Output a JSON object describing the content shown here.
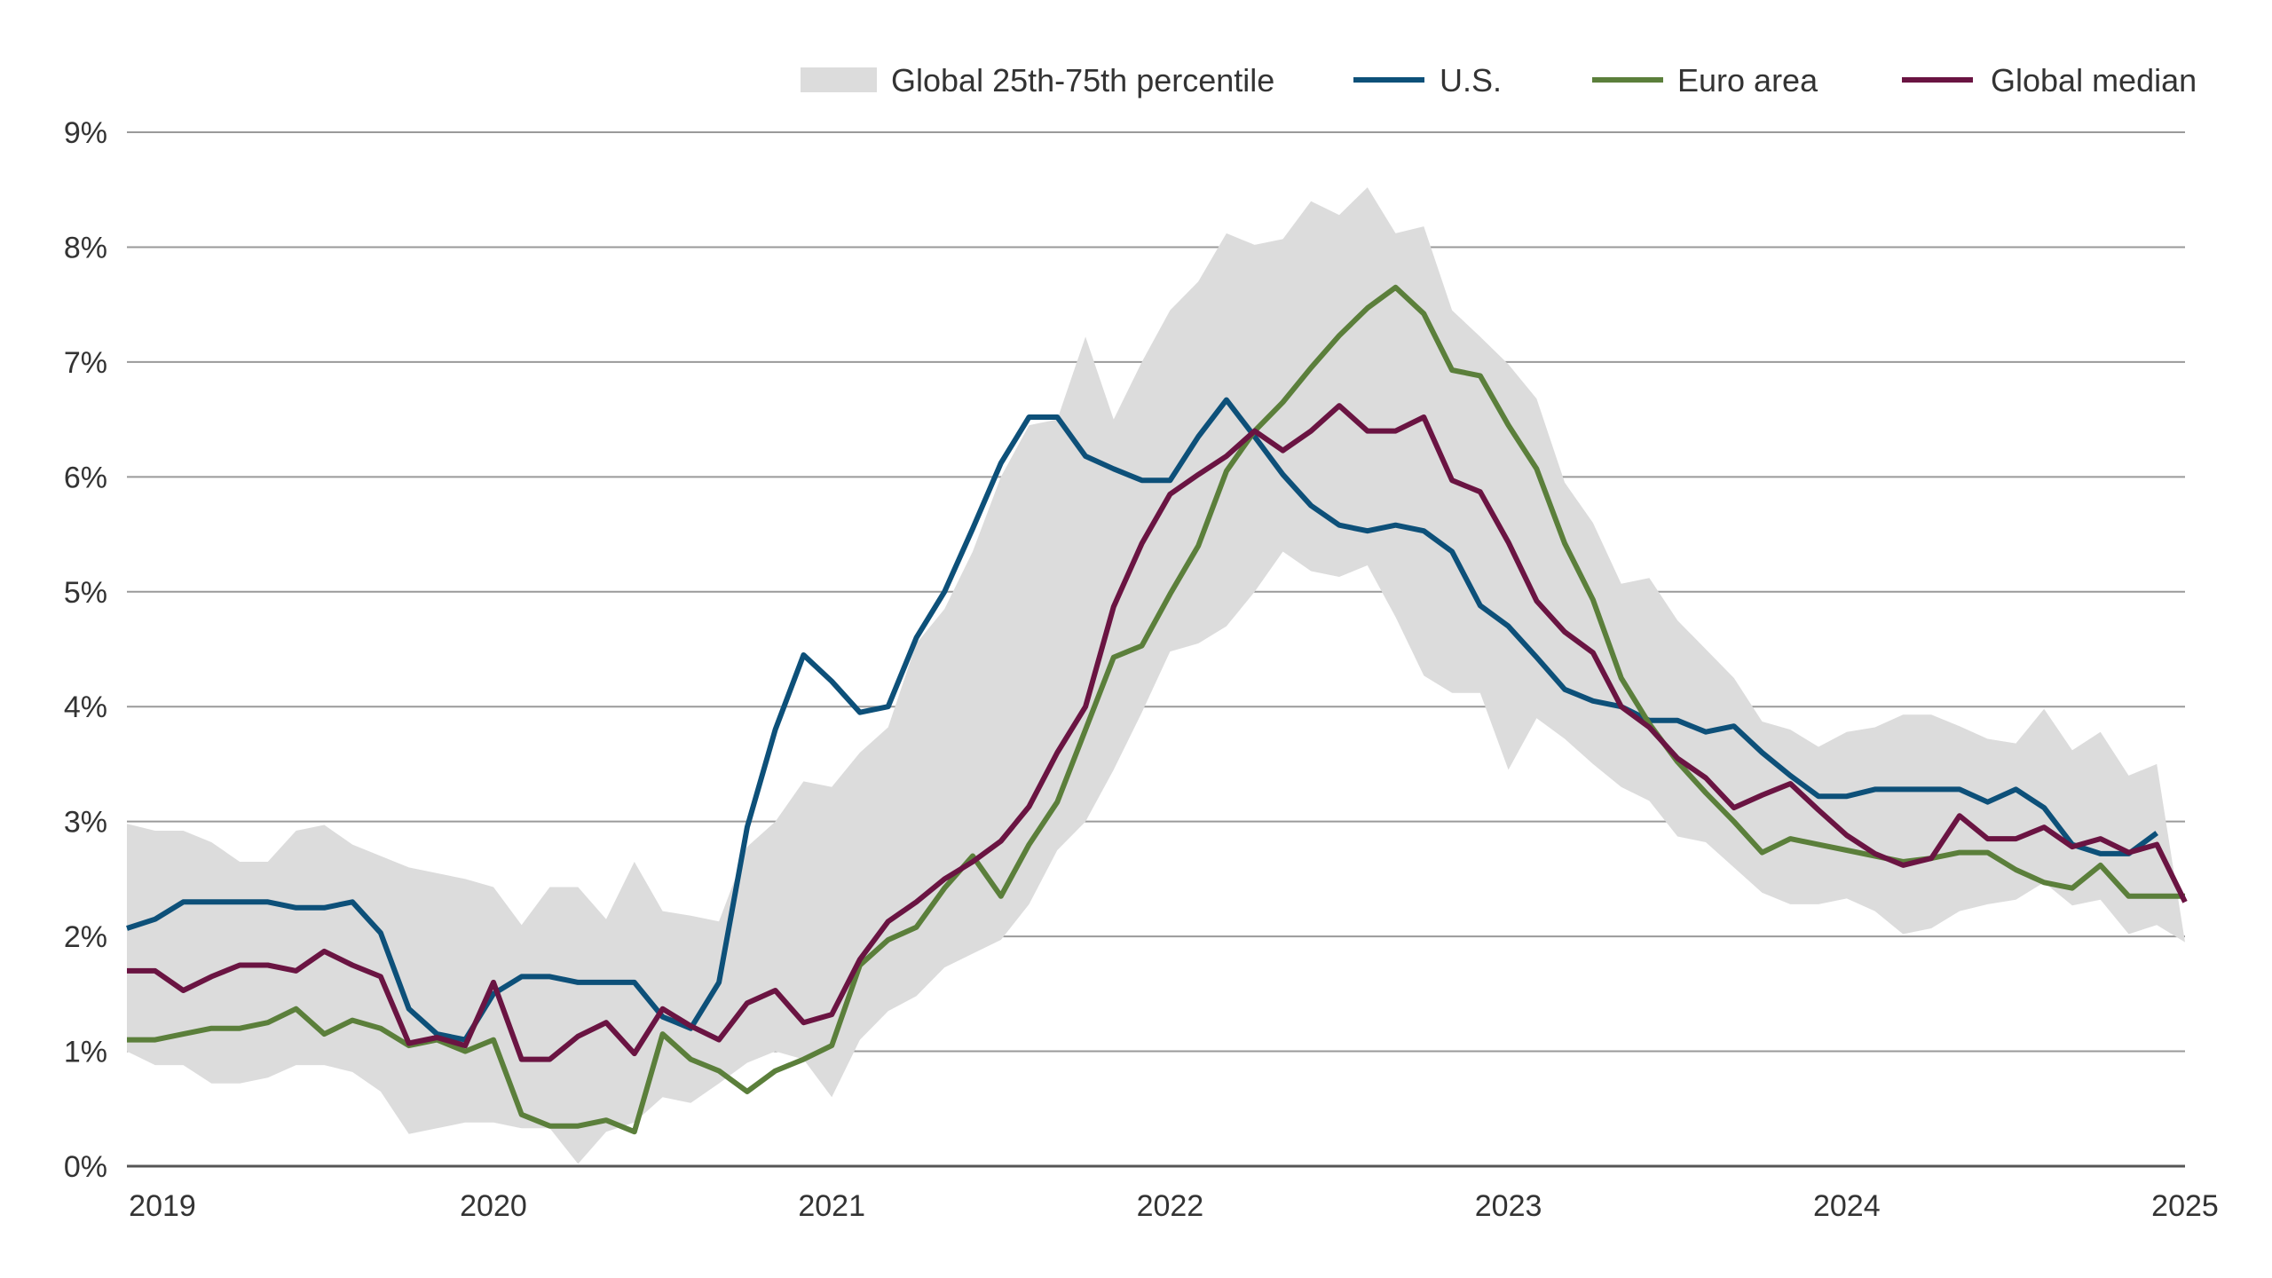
{
  "chart_data": {
    "type": "line",
    "title": "",
    "xlabel": "",
    "ylabel": "",
    "ylim": [
      0,
      9
    ],
    "y_ticks": [
      "0%",
      "1%",
      "2%",
      "3%",
      "4%",
      "5%",
      "6%",
      "7%",
      "8%",
      "9%"
    ],
    "x_ticks": [
      "2019",
      "2020",
      "2021",
      "2022",
      "2023",
      "2024",
      "2025"
    ],
    "grid": "horizontal",
    "legend_position": "top-right",
    "x": [
      "2018-12",
      "2019-01",
      "2019-02",
      "2019-03",
      "2019-04",
      "2019-05",
      "2019-06",
      "2019-07",
      "2019-08",
      "2019-09",
      "2019-10",
      "2019-11",
      "2019-12",
      "2020-01",
      "2020-02",
      "2020-03",
      "2020-04",
      "2020-05",
      "2020-06",
      "2020-07",
      "2020-08",
      "2020-09",
      "2020-10",
      "2020-11",
      "2020-12",
      "2021-01",
      "2021-02",
      "2021-03",
      "2021-04",
      "2021-05",
      "2021-06",
      "2021-07",
      "2021-08",
      "2021-09",
      "2021-10",
      "2021-11",
      "2021-12",
      "2022-01",
      "2022-02",
      "2022-03",
      "2022-04",
      "2022-05",
      "2022-06",
      "2022-07",
      "2022-08",
      "2022-09",
      "2022-10",
      "2022-11",
      "2022-12",
      "2023-01",
      "2023-02",
      "2023-03",
      "2023-04",
      "2023-05",
      "2023-06",
      "2023-07",
      "2023-08",
      "2023-09",
      "2023-10",
      "2023-11",
      "2023-12",
      "2024-01",
      "2024-02",
      "2024-03",
      "2024-04",
      "2024-05",
      "2024-06",
      "2024-07",
      "2024-08",
      "2024-09",
      "2024-10",
      "2024-11",
      "2024-12",
      "2025-01"
    ],
    "band": {
      "name": "Global 25th-75th percentile",
      "color": "#dcdcdc",
      "upper": [
        2.98,
        2.92,
        2.92,
        2.82,
        2.65,
        2.65,
        2.92,
        2.97,
        2.8,
        2.7,
        2.6,
        2.55,
        2.5,
        2.43,
        2.1,
        2.43,
        2.43,
        2.15,
        2.65,
        2.22,
        2.18,
        2.13,
        2.78,
        3.0,
        3.35,
        3.3,
        3.6,
        3.82,
        4.55,
        4.85,
        5.35,
        6.0,
        6.45,
        6.5,
        7.22,
        6.5,
        7.0,
        7.45,
        7.7,
        8.12,
        8.02,
        8.07,
        8.4,
        8.28,
        8.52,
        8.12,
        8.18,
        7.45,
        7.22,
        6.98,
        6.68,
        5.95,
        5.6,
        5.07,
        5.12,
        4.75,
        4.5,
        4.25,
        3.87,
        3.8,
        3.65,
        3.78,
        3.82,
        3.93,
        3.93,
        3.83,
        3.72,
        3.68,
        3.98,
        3.62,
        3.78,
        3.4,
        3.5,
        1.95
      ],
      "lower": [
        1.0,
        0.88,
        0.88,
        0.72,
        0.72,
        0.77,
        0.88,
        0.88,
        0.82,
        0.65,
        0.28,
        0.33,
        0.38,
        0.38,
        0.33,
        0.33,
        0.02,
        0.3,
        0.38,
        0.6,
        0.55,
        0.72,
        0.9,
        1.0,
        0.93,
        0.6,
        1.1,
        1.35,
        1.48,
        1.73,
        1.85,
        1.97,
        2.28,
        2.75,
        3.0,
        3.45,
        3.95,
        4.48,
        4.55,
        4.7,
        5.0,
        5.35,
        5.18,
        5.13,
        5.23,
        4.78,
        4.27,
        4.12,
        4.12,
        3.45,
        3.9,
        3.72,
        3.5,
        3.3,
        3.18,
        2.87,
        2.82,
        2.6,
        2.38,
        2.28,
        2.28,
        2.33,
        2.22,
        2.02,
        2.07,
        2.22,
        2.28,
        2.32,
        2.47,
        2.27,
        2.32,
        2.02,
        2.1,
        1.95
      ]
    },
    "series": [
      {
        "name": "U.S.",
        "color": "#0d5079",
        "values": [
          2.07,
          2.15,
          2.3,
          2.3,
          2.3,
          2.3,
          2.25,
          2.25,
          2.3,
          2.03,
          1.37,
          1.15,
          1.1,
          1.5,
          1.65,
          1.65,
          1.6,
          1.6,
          1.6,
          1.3,
          1.2,
          1.6,
          2.95,
          3.8,
          4.45,
          4.22,
          3.95,
          4.0,
          4.6,
          5.0,
          5.55,
          6.12,
          6.52,
          6.52,
          6.18,
          6.07,
          5.97,
          5.97,
          6.35,
          6.67,
          6.35,
          6.02,
          5.75,
          5.58,
          5.53,
          5.58,
          5.53,
          5.35,
          4.88,
          4.7,
          4.43,
          4.15,
          4.05,
          4.0,
          3.88,
          3.88,
          3.78,
          3.83,
          3.6,
          3.4,
          3.22,
          3.22,
          3.28,
          3.28,
          3.28,
          3.28,
          3.17,
          3.28,
          3.12,
          2.8,
          2.72,
          2.72,
          2.9,
          null
        ]
      },
      {
        "name": "Euro area",
        "color": "#5b7f3b",
        "values": [
          1.1,
          1.1,
          1.15,
          1.2,
          1.2,
          1.25,
          1.37,
          1.15,
          1.27,
          1.2,
          1.05,
          1.1,
          1.0,
          1.1,
          0.45,
          0.35,
          0.35,
          0.4,
          0.3,
          1.15,
          0.93,
          0.83,
          0.65,
          0.83,
          0.93,
          1.05,
          1.75,
          1.97,
          2.08,
          2.42,
          2.7,
          2.35,
          2.8,
          3.17,
          3.8,
          4.43,
          4.53,
          4.98,
          5.4,
          6.05,
          6.4,
          6.65,
          6.95,
          7.23,
          7.47,
          7.65,
          7.42,
          6.93,
          6.88,
          6.45,
          6.07,
          5.42,
          4.93,
          4.25,
          3.85,
          3.52,
          3.25,
          3.0,
          2.73,
          2.85,
          2.8,
          2.75,
          2.7,
          2.65,
          2.68,
          2.73,
          2.73,
          2.58,
          2.47,
          2.42,
          2.62,
          2.35,
          2.35,
          2.35
        ]
      },
      {
        "name": "Global median",
        "color": "#6a1442",
        "values": [
          1.7,
          1.7,
          1.53,
          1.65,
          1.75,
          1.75,
          1.7,
          1.87,
          1.75,
          1.65,
          1.07,
          1.12,
          1.05,
          1.6,
          0.93,
          0.93,
          1.13,
          1.25,
          0.98,
          1.37,
          1.22,
          1.1,
          1.42,
          1.53,
          1.25,
          1.32,
          1.8,
          2.13,
          2.3,
          2.5,
          2.65,
          2.83,
          3.13,
          3.6,
          4.0,
          4.87,
          5.42,
          5.85,
          6.02,
          6.18,
          6.4,
          6.23,
          6.4,
          6.62,
          6.4,
          6.4,
          6.52,
          5.97,
          5.87,
          5.43,
          4.92,
          4.65,
          4.47,
          4.0,
          3.82,
          3.55,
          3.38,
          3.12,
          3.23,
          3.33,
          3.1,
          2.88,
          2.72,
          2.62,
          2.68,
          3.05,
          2.85,
          2.85,
          2.95,
          2.78,
          2.85,
          2.73,
          2.8,
          2.3
        ]
      }
    ]
  }
}
